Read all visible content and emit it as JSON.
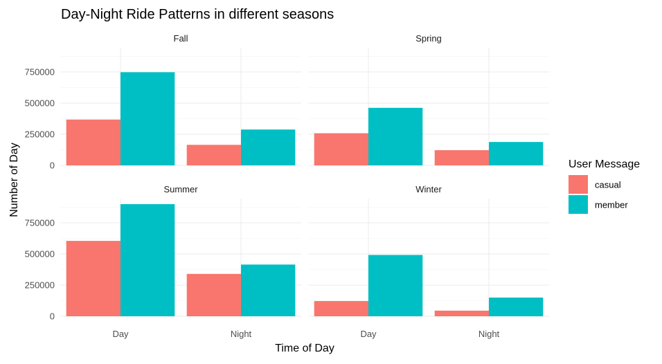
{
  "chart_data": {
    "type": "bar",
    "title": "Day-Night Ride Patterns in different seasons",
    "xlabel": "Time of Day",
    "ylabel": "Number of Day",
    "categories": [
      "Day",
      "Night"
    ],
    "yticks": [
      0,
      250000,
      500000,
      750000
    ],
    "yticklabels": [
      "0",
      "250000",
      "500000",
      "750000"
    ],
    "ylim": [
      0,
      900000
    ],
    "grid": true,
    "legend": {
      "title": "User Message",
      "position": "right",
      "entries": [
        {
          "name": "casual",
          "color": "#F8766D"
        },
        {
          "name": "member",
          "color": "#00BFC4"
        }
      ]
    },
    "facets": [
      {
        "name": "Fall",
        "series": [
          {
            "name": "casual",
            "values": [
              368000,
              165000
            ]
          },
          {
            "name": "member",
            "values": [
              748000,
              288000
            ]
          }
        ]
      },
      {
        "name": "Spring",
        "series": [
          {
            "name": "casual",
            "values": [
              258000,
              122000
            ]
          },
          {
            "name": "member",
            "values": [
              462000,
              188000
            ]
          }
        ]
      },
      {
        "name": "Summer",
        "series": [
          {
            "name": "casual",
            "values": [
              605000,
              340000
            ]
          },
          {
            "name": "member",
            "values": [
              900000,
              415000
            ]
          }
        ]
      },
      {
        "name": "Winter",
        "series": [
          {
            "name": "casual",
            "values": [
              122000,
              45000
            ]
          },
          {
            "name": "member",
            "values": [
              492000,
              150000
            ]
          }
        ]
      }
    ]
  }
}
